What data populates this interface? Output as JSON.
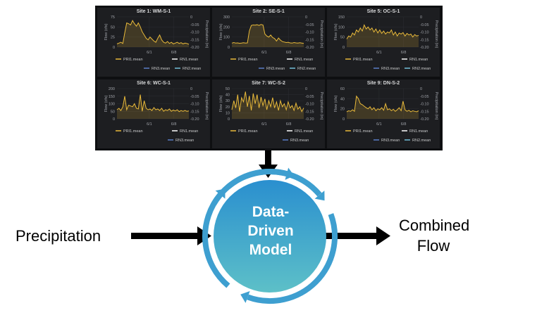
{
  "diagram": {
    "input_label": "Precipitation",
    "output_label": "Combined Flow",
    "model_label_lines": [
      "Data-",
      "Driven",
      "Model"
    ]
  },
  "colors": {
    "dashboard_bg": "#0e0f11",
    "panel_bg": "#1d1e21",
    "flow_series": "#e8b93a",
    "rn1_series": "#ffffff",
    "rn2_series": "#73bfd8",
    "rn3_series": "#5b7ec9",
    "arrow": "#000000",
    "model_circle_top": "#2a8fcf",
    "model_circle_bottom": "#5dc0c8",
    "cycle_ring": "#3e9fd0"
  },
  "panels": [
    {
      "title": "Site 1: WM-S-1",
      "left_axis": "Flow (cfs)",
      "right_axis": "Precipitation (in)",
      "left_ticks": [
        "75",
        "50",
        "25",
        "0"
      ],
      "right_ticks": [
        "0",
        "-0.05",
        "-0.10",
        "-0.15",
        "-0.20"
      ],
      "x_ticks": [
        "6/1",
        "6/8"
      ],
      "legend": [
        "PRI1.mean",
        "RN1.mean",
        "RN3.mean",
        "RN2.mean"
      ],
      "flow": [
        8,
        10,
        12,
        9,
        35,
        60,
        58,
        55,
        66,
        58,
        52,
        60,
        50,
        38,
        30,
        22,
        18,
        25,
        20,
        15,
        12,
        22,
        30,
        18,
        12,
        10,
        14,
        9,
        12,
        8,
        10,
        12,
        9,
        11,
        8,
        10,
        9,
        7
      ]
    },
    {
      "title": "Site 2: SE-S-1",
      "left_axis": "Flow (cfs)",
      "right_axis": "Precipitation (in)",
      "left_ticks": [
        "300",
        "200",
        "100",
        "0"
      ],
      "right_ticks": [
        "0",
        "-0.05",
        "-0.10",
        "-0.15",
        "-0.20"
      ],
      "x_ticks": [
        "6/1",
        "6/8"
      ],
      "legend": [
        "PRI1.mean",
        "RN1.mean",
        "RN3.mean",
        "RN2.mean"
      ],
      "flow": [
        40,
        45,
        40,
        42,
        38,
        40,
        44,
        40,
        42,
        160,
        215,
        220,
        218,
        222,
        215,
        225,
        220,
        130,
        110,
        100,
        120,
        95,
        85,
        60,
        90,
        70,
        55,
        50,
        45,
        48,
        42,
        40,
        45,
        42,
        40,
        44,
        40,
        38
      ]
    },
    {
      "title": "Site 5: OC-S-1",
      "left_axis": "Flow (cfs)",
      "right_axis": "Precipitation (in)",
      "left_ticks": [
        "150",
        "100",
        "50",
        "0"
      ],
      "right_ticks": [
        "0",
        "-0.05",
        "-0.10",
        "-0.15",
        "-0.20"
      ],
      "x_ticks": [
        "6/1",
        "6/8"
      ],
      "legend": [
        "PRI1.mean",
        "RN1.mean",
        "RN3.mean",
        "RN2.mean"
      ],
      "flow": [
        40,
        55,
        50,
        70,
        60,
        85,
        75,
        95,
        80,
        110,
        90,
        100,
        85,
        95,
        75,
        90,
        70,
        85,
        68,
        80,
        65,
        75,
        70,
        85,
        60,
        75,
        55,
        70,
        65,
        72,
        55,
        68,
        60,
        65,
        50,
        62,
        55,
        58
      ]
    },
    {
      "title": "Site 6: WC-S-1",
      "left_axis": "Flow (cfs)",
      "right_axis": "Precipitation (in)",
      "left_ticks": [
        "200",
        "150",
        "100",
        "50",
        "0"
      ],
      "right_ticks": [
        "0",
        "-0.05",
        "-0.10",
        "-0.15",
        "-0.20"
      ],
      "x_ticks": [
        "6/1",
        "6/8"
      ],
      "legend": [
        "PRI1.mean",
        "RN1.mean",
        "RN3.mean"
      ],
      "flow": [
        60,
        70,
        55,
        80,
        150,
        60,
        90,
        85,
        80,
        100,
        70,
        65,
        160,
        50,
        120,
        70,
        60,
        65,
        55,
        75,
        60,
        65,
        55,
        70,
        50,
        60,
        55,
        65,
        50,
        58,
        52,
        60,
        48,
        55,
        50,
        56,
        50,
        52
      ]
    },
    {
      "title": "Site 7: WC-S-2",
      "left_axis": "Flow (cfs)",
      "right_axis": "Precipitation (in)",
      "left_ticks": [
        "50",
        "40",
        "30",
        "20",
        "10",
        "0"
      ],
      "right_ticks": [
        "0",
        "-0.05",
        "-0.10",
        "-0.15",
        "-0.20"
      ],
      "x_ticks": [
        "6/1",
        "6/8"
      ],
      "legend": [
        "PRI1.mean",
        "RN1.mean",
        "RN3.mean"
      ],
      "flow": [
        15,
        30,
        18,
        40,
        12,
        35,
        28,
        45,
        20,
        38,
        14,
        42,
        25,
        40,
        18,
        36,
        22,
        33,
        15,
        30,
        20,
        35,
        18,
        28,
        14,
        30,
        20,
        25,
        15,
        28,
        18,
        22,
        14,
        26,
        16,
        20,
        12,
        18
      ]
    },
    {
      "title": "Site 9: DN-S-2",
      "left_axis": "Flow (cfs)",
      "right_axis": "Precipitation (in)",
      "left_ticks": [
        "60",
        "40",
        "20",
        "0"
      ],
      "right_ticks": [
        "0",
        "-0.05",
        "-0.10",
        "-0.15",
        "-0.20"
      ],
      "x_ticks": [
        "6/1",
        "6/8"
      ],
      "legend": [
        "PRI1.mean",
        "RN1.mean",
        "RN3.mean",
        "RN2.mean"
      ],
      "flow": [
        14,
        16,
        15,
        18,
        15,
        45,
        40,
        30,
        28,
        25,
        22,
        20,
        24,
        18,
        22,
        16,
        20,
        18,
        22,
        17,
        30,
        18,
        20,
        16,
        19,
        15,
        18,
        22,
        16,
        35,
        18,
        15,
        17,
        14,
        16,
        15,
        14,
        16
      ]
    }
  ]
}
